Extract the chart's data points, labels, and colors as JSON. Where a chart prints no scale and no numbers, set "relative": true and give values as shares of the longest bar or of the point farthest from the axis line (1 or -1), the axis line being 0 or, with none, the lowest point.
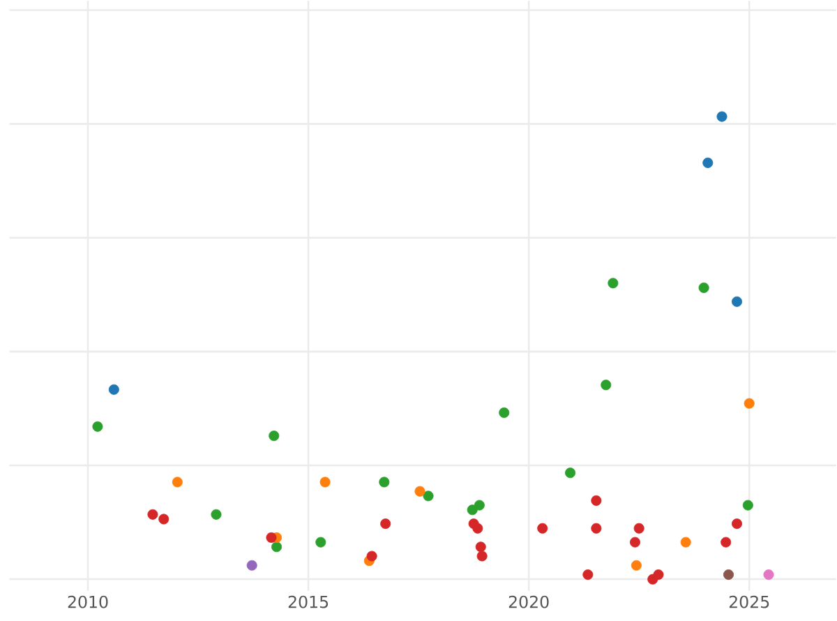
{
  "chart_data": {
    "type": "scatter",
    "relative": true,
    "grid": true,
    "marker": "circle",
    "xlim": [
      2008.22,
      2026.97
    ],
    "xticks": [
      2010,
      2015,
      2020,
      2025
    ],
    "series": [
      {
        "color": "#1f77b4",
        "x": [
          2010.59,
          2024.38,
          2024.06,
          2024.72
        ],
        "values": [
          0.41,
          1.0,
          0.9,
          0.6
        ]
      },
      {
        "color": "#2ca02c",
        "x": [
          2010.22,
          2014.22,
          2012.91,
          2014.28,
          2015.28,
          2016.72,
          2017.72,
          2018.72,
          2018.88,
          2019.44,
          2020.94,
          2021.75,
          2021.91,
          2023.97,
          2024.97
        ],
        "values": [
          0.33,
          0.31,
          0.14,
          0.07,
          0.08,
          0.21,
          0.18,
          0.15,
          0.16,
          0.36,
          0.23,
          0.42,
          0.64,
          0.63,
          0.16
        ]
      },
      {
        "color": "#ff7f0e",
        "x": [
          2012.03,
          2014.28,
          2015.38,
          2016.38,
          2017.53,
          2023.56,
          2022.44,
          2025.0
        ],
        "values": [
          0.21,
          0.09,
          0.21,
          0.04,
          0.19,
          0.08,
          0.03,
          0.38
        ]
      },
      {
        "color": "#d62728",
        "x": [
          2011.47,
          2011.72,
          2014.16,
          2016.44,
          2016.75,
          2018.75,
          2018.84,
          2018.91,
          2018.94,
          2020.31,
          2021.53,
          2021.53,
          2021.34,
          2022.5,
          2022.41,
          2022.81,
          2022.94,
          2024.47,
          2024.72
        ],
        "values": [
          0.14,
          0.13,
          0.09,
          0.05,
          0.12,
          0.12,
          0.11,
          0.07,
          0.05,
          0.11,
          0.17,
          0.11,
          0.01,
          0.11,
          0.08,
          0.0,
          0.01,
          0.08,
          0.12
        ]
      },
      {
        "color": "#9467bd",
        "x": [
          2013.72
        ],
        "values": [
          0.03
        ]
      },
      {
        "color": "#8c564b",
        "x": [
          2024.53
        ],
        "values": [
          0.01
        ]
      },
      {
        "color": "#e377c2",
        "x": [
          2025.44
        ],
        "values": [
          0.01
        ]
      }
    ]
  }
}
